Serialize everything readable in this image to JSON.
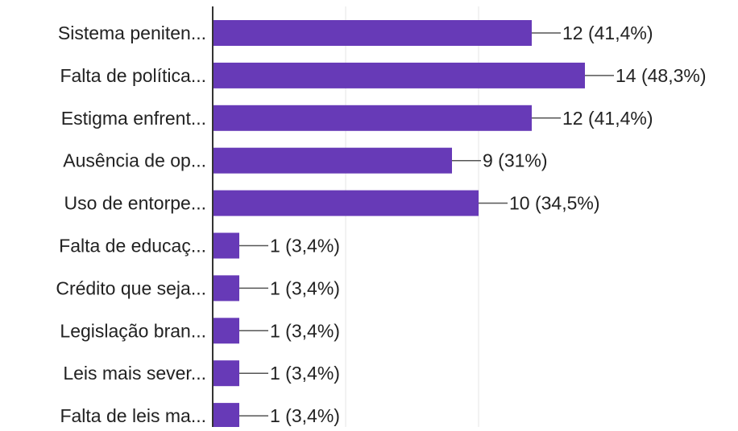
{
  "colors": {
    "bar": "#673AB7",
    "axis": "#333333",
    "grid": "#e6e6e6",
    "leader": "#555555",
    "text": "#222222"
  },
  "chart_data": {
    "type": "bar",
    "orientation": "horizontal",
    "title": "",
    "xlabel": "",
    "ylabel": "",
    "grid": true,
    "xlim": [
      0,
      16
    ],
    "categories": [
      "Sistema peniten...",
      "Falta de política...",
      "Estigma enfrent...",
      "Ausência de op...",
      "Uso de entorpe...",
      "Falta de educaç...",
      "Crédito que seja...",
      "Legislação bran...",
      "Leis mais sever...",
      "Falta de leis ma..."
    ],
    "values": [
      12,
      14,
      12,
      9,
      10,
      1,
      1,
      1,
      1,
      1
    ],
    "value_labels": [
      "12 (41,4%)",
      "14 (48,3%)",
      "12 (41,4%)",
      "9 (31%)",
      "10 (34,5%)",
      "1 (3,4%)",
      "1 (3,4%)",
      "1 (3,4%)",
      "1 (3,4%)",
      "1 (3,4%)"
    ]
  }
}
